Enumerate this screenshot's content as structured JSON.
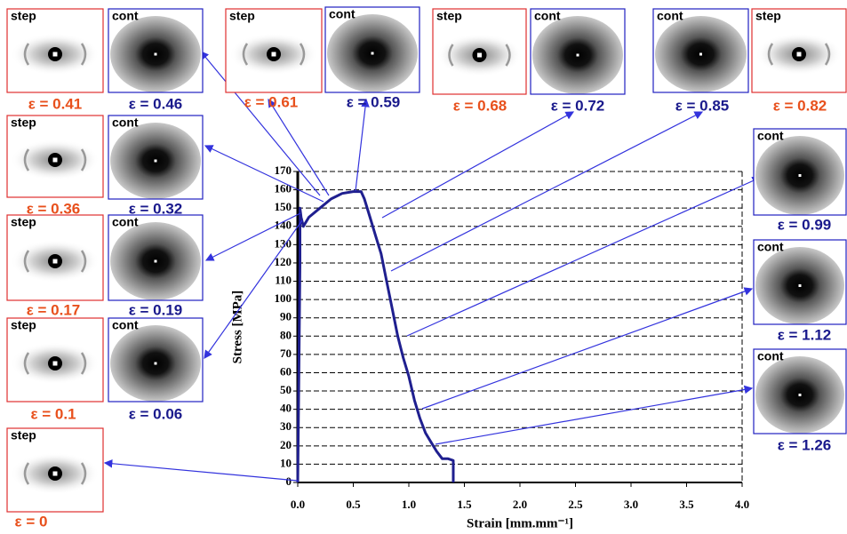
{
  "chart_data": {
    "type": "line",
    "x_label": "Strain [mm.mm⁻¹]",
    "y_label": "Stress [MPa]",
    "x": [
      0,
      0.01,
      0.02,
      0.02,
      0.03,
      0.05,
      0.1,
      0.2,
      0.3,
      0.4,
      0.5,
      0.57,
      0.6,
      0.65,
      0.7,
      0.75,
      0.8,
      0.85,
      0.9,
      0.95,
      1.0,
      1.05,
      1.1,
      1.15,
      1.2,
      1.25,
      1.3,
      1.35,
      1.4,
      1.4
    ],
    "values": [
      0,
      60,
      120,
      150,
      145,
      140,
      145,
      150,
      155,
      158,
      159,
      159,
      155,
      145,
      135,
      125,
      110,
      95,
      80,
      68,
      58,
      45,
      35,
      27,
      22,
      17,
      13,
      13,
      12,
      0
    ],
    "color": "#1f1f8f",
    "xlim": [
      0,
      4
    ],
    "xticks": [
      {
        "value": 0,
        "label": "0.0"
      },
      {
        "value": 0.5,
        "label": "0.5"
      },
      {
        "value": 1,
        "label": "1.0"
      },
      {
        "value": 1.5,
        "label": "1.5"
      },
      {
        "value": 2,
        "label": "2.0"
      },
      {
        "value": 2.5,
        "label": "2.5"
      },
      {
        "value": 3,
        "label": "3.0"
      },
      {
        "value": 3.5,
        "label": "3.5"
      },
      {
        "value": 4,
        "label": "4.0"
      }
    ],
    "ylim": [
      0,
      170
    ],
    "yticks": [
      0,
      10,
      20,
      30,
      40,
      50,
      60,
      70,
      80,
      90,
      100,
      110,
      120,
      130,
      140,
      150,
      160,
      170
    ],
    "grid": true
  },
  "panels": [
    {
      "mode": "step",
      "label": "ε = 0.41"
    },
    {
      "mode": "cont",
      "label": "ε = 0.46"
    },
    {
      "mode": "step",
      "label": "ε = 0.61"
    },
    {
      "mode": "cont",
      "label": "ε = 0.59"
    },
    {
      "mode": "step",
      "label": "ε = 0.68"
    },
    {
      "mode": "cont",
      "label": "ε = 0.72"
    },
    {
      "mode": "cont",
      "label": "ε = 0.85"
    },
    {
      "mode": "step",
      "label": "ε = 0.82"
    },
    {
      "mode": "step",
      "label": "ε = 0.36"
    },
    {
      "mode": "cont",
      "label": "ε = 0.32"
    },
    {
      "mode": "step",
      "label": "ε = 0.17"
    },
    {
      "mode": "cont",
      "label": "ε = 0.19"
    },
    {
      "mode": "step",
      "label": "ε = 0.1"
    },
    {
      "mode": "cont",
      "label": "ε = 0.06"
    },
    {
      "mode": "step",
      "label": "ε = 0"
    },
    {
      "mode": "cont",
      "label": "ε = 0.99"
    },
    {
      "mode": "cont",
      "label": "ε = 1.12"
    },
    {
      "mode": "cont",
      "label": "ε = 1.26"
    }
  ]
}
